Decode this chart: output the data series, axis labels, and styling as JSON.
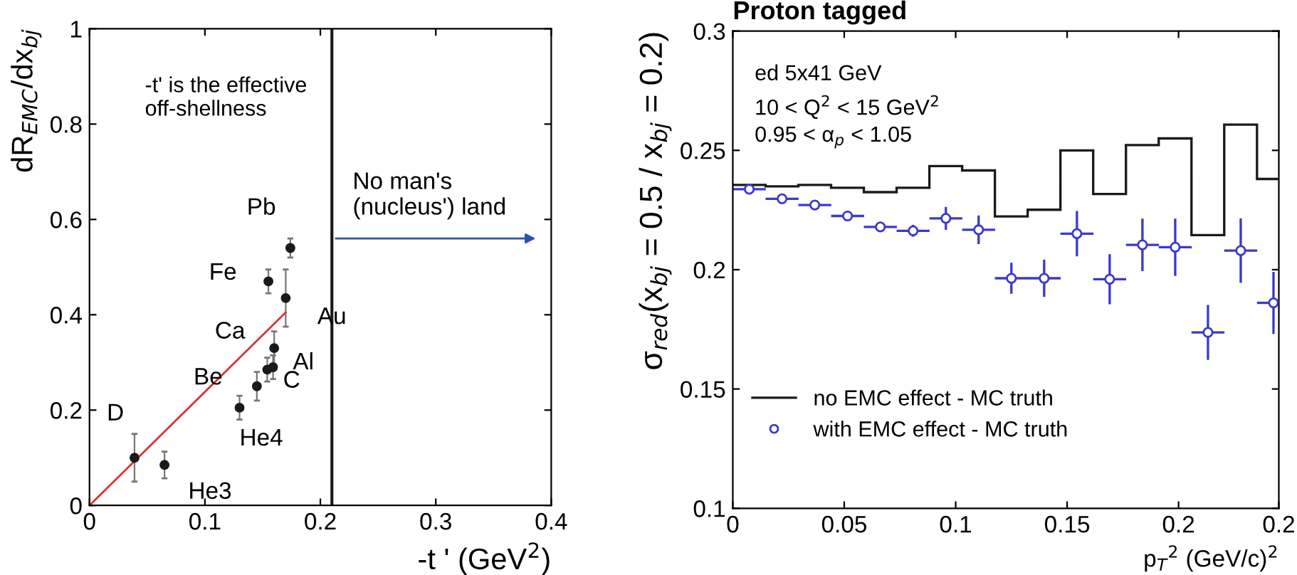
{
  "chart_data": [
    {
      "type": "scatter",
      "xlabel": "-t ' (GeV$^{2}$)",
      "ylabel": "dR$_{EMC}$/dx$_{bj}$",
      "xlim": [
        0,
        0.4
      ],
      "ylim": [
        0,
        1
      ],
      "xticks": [
        0,
        0.1,
        0.2,
        0.3,
        0.4
      ],
      "yticks": [
        0,
        0.2,
        0.4,
        0.6,
        0.8,
        1
      ],
      "grid": false,
      "legend": false,
      "series": [
        {
          "type": "scatter",
          "color": "#1a1a1a",
          "marker": "circle",
          "x": [
            0.039,
            0.065,
            0.13,
            0.145,
            0.154,
            0.159,
            0.16,
            0.155,
            0.17,
            0.174
          ],
          "values": [
            0.1,
            0.085,
            0.205,
            0.25,
            0.285,
            0.29,
            0.33,
            0.47,
            0.435,
            0.54
          ],
          "errors": [
            0.05,
            0.028,
            0.025,
            0.03,
            0.025,
            0.025,
            0.035,
            0.025,
            0.06,
            0.02
          ]
        },
        {
          "type": "line",
          "color": "#e03030",
          "line_style": "solid",
          "x": [
            0,
            0.17
          ],
          "values": [
            0,
            0.405
          ]
        }
      ],
      "ref_lines": [
        {
          "axis": "x",
          "value": 0.21,
          "color": "#1a1a1a"
        }
      ],
      "annotations": [
        "-t' is the effective\noff-shellness",
        "No man's\n(nucleus') land",
        {
          "text": "D",
          "x": 0.039,
          "y": 0.1
        },
        {
          "text": "He3",
          "x": 0.065,
          "y": 0.085
        },
        {
          "text": "He4",
          "x": 0.13,
          "y": 0.205
        },
        {
          "text": "Be",
          "x": 0.145,
          "y": 0.25
        },
        {
          "text": "C",
          "x": 0.154,
          "y": 0.285
        },
        {
          "text": "Al",
          "x": 0.159,
          "y": 0.29
        },
        {
          "text": "Ca",
          "x": 0.16,
          "y": 0.33
        },
        {
          "text": "Fe",
          "x": 0.155,
          "y": 0.47
        },
        {
          "text": "Au",
          "x": 0.17,
          "y": 0.435
        },
        {
          "text": "Pb",
          "x": 0.174,
          "y": 0.54
        }
      ]
    },
    {
      "type": "histogram",
      "title": "Proton tagged",
      "xlabel": "p$_{T}$$^{2}$ (GeV/c)$^{2}$",
      "ylabel": "σ$_{red}$(x$_{bj}$ = 0.5 / x$_{bj}$ = 0.2)",
      "xlim": [
        0,
        0.245
      ],
      "ylim": [
        0.1,
        0.3
      ],
      "xticks": [
        0,
        0.05,
        0.1,
        0.15,
        0.2,
        {
          "value": 0.245,
          "label": "0.2"
        }
      ],
      "yticks": [
        0.1,
        0.15,
        0.2,
        0.25,
        0.3
      ],
      "grid": false,
      "legend": "bottom left",
      "series": [
        {
          "type": "histogram",
          "name": "no EMC effect - MC truth",
          "color": "#1a1a1a",
          "bins": [
            0,
            0.0147,
            0.0294,
            0.0441,
            0.0588,
            0.0735,
            0.0882,
            0.1029,
            0.1176,
            0.1323,
            0.147,
            0.1617,
            0.1764,
            0.1911,
            0.2058,
            0.2205,
            0.2352,
            0.245
          ],
          "values": [
            0.2355,
            0.2349,
            0.2355,
            0.2343,
            0.2325,
            0.2343,
            0.2434,
            0.2416,
            0.2223,
            0.2251,
            0.25,
            0.2317,
            0.2522,
            0.255,
            0.2145,
            0.2608,
            0.238
          ]
        },
        {
          "type": "scatter",
          "name": "with EMC effect - MC truth",
          "color": "#3a3acc",
          "marker": "circle",
          "x": [
            0.0074,
            0.0221,
            0.0368,
            0.0515,
            0.0662,
            0.0809,
            0.0956,
            0.1103,
            0.125,
            0.1397,
            0.1544,
            0.1691,
            0.1838,
            0.1985,
            0.2132,
            0.2279,
            0.2426
          ],
          "values": [
            0.2337,
            0.2297,
            0.2271,
            0.2225,
            0.2179,
            0.2163,
            0.2215,
            0.2167,
            0.1964,
            0.1964,
            0.2151,
            0.196,
            0.2104,
            0.2094,
            0.1737,
            0.208,
            0.1861
          ],
          "errors": [
            null,
            null,
            null,
            null,
            null,
            0.0025,
            0.0048,
            0.006,
            0.0065,
            0.0078,
            0.0095,
            0.0105,
            0.011,
            0.012,
            0.0115,
            0.0135,
            0.013
          ],
          "xerrors": [
            0.0074,
            0.0074,
            0.0074,
            0.0074,
            0.0074,
            0.0074,
            0.0074,
            0.0074,
            0.0074,
            0.0074,
            0.0074,
            0.0074,
            0.0074,
            0.0074,
            0.0074,
            0.0074,
            [
              0.2352,
              0.245
            ]
          ]
        }
      ],
      "annotations": [
        "ed 5x41 GeV",
        "10 < Q$^{2}$ < 15 GeV$^{2}$",
        "0.95 < α$_{p}$ < 1.05"
      ]
    }
  ]
}
